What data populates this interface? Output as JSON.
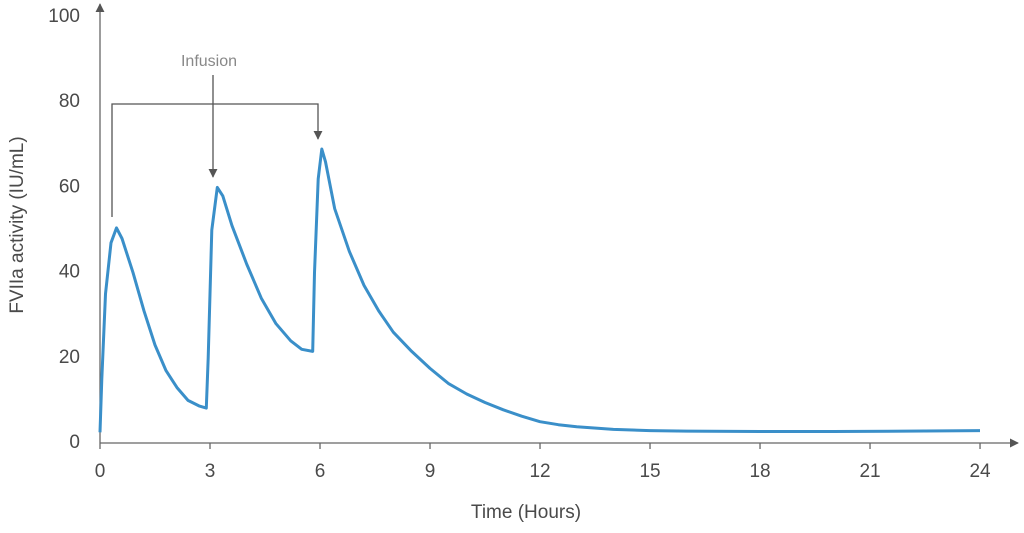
{
  "chart_data": {
    "type": "line",
    "x_label": "Time (Hours)",
    "y_label": "FVIIa activity (IU/mL)",
    "annotation": "Infusion",
    "xlim": [
      0,
      25
    ],
    "xticks": [
      0,
      3,
      6,
      9,
      12,
      15,
      18,
      21,
      24
    ],
    "ylim": [
      0,
      103
    ],
    "yticks": [
      0,
      20,
      40,
      60,
      80,
      100
    ],
    "grid": false,
    "series": [
      {
        "color": "#3a8fc9",
        "x": [
          0,
          0.05,
          0.15,
          0.3,
          0.45,
          0.6,
          0.9,
          1.2,
          1.5,
          1.8,
          2.1,
          2.4,
          2.7,
          2.9,
          2.95,
          3.05,
          3.2,
          3.35,
          3.6,
          4,
          4.4,
          4.8,
          5.2,
          5.5,
          5.8,
          5.85,
          5.95,
          6.05,
          6.15,
          6.4,
          6.8,
          7.2,
          7.6,
          8,
          8.5,
          9,
          9.5,
          10,
          10.5,
          11,
          11.5,
          12,
          12.5,
          13,
          14,
          15,
          16,
          18,
          20,
          22,
          24
        ],
        "values": [
          2.5,
          15,
          35,
          47,
          50.5,
          48,
          40,
          31,
          23,
          17,
          13,
          10,
          8.7,
          8.2,
          20,
          50,
          60,
          58,
          51,
          42,
          34,
          28,
          24,
          22,
          21.5,
          40,
          62,
          69,
          66,
          55,
          45,
          37,
          31,
          26,
          21.5,
          17.5,
          14,
          11.5,
          9.5,
          7.8,
          6.3,
          5,
          4.3,
          3.8,
          3.2,
          2.9,
          2.8,
          2.7,
          2.7,
          2.8,
          2.9
        ]
      }
    ]
  }
}
